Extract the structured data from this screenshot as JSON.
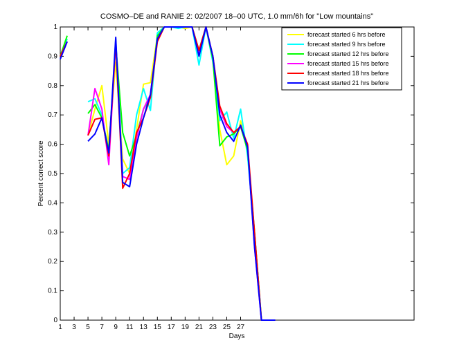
{
  "chart_data": {
    "type": "line",
    "title": "COSMO–DE and RANIE 2: 02/2007 18–00 UTC, 1.0 mm/6h for \"Low mountains\"",
    "xlabel": "Days",
    "ylabel": "Percent correct score",
    "x": [
      1,
      2,
      3,
      4,
      5,
      6,
      7,
      8,
      9,
      10,
      11,
      12,
      13,
      14,
      15,
      16,
      17,
      18,
      19,
      20,
      21,
      22,
      23,
      24,
      25,
      26,
      27,
      28,
      29,
      30,
      31,
      32
    ],
    "xlim": [
      1,
      52
    ],
    "xticks": [
      1,
      3,
      5,
      7,
      9,
      11,
      13,
      15,
      17,
      19,
      21,
      23,
      25,
      27
    ],
    "ylim": [
      0,
      1
    ],
    "yticks": [
      0,
      0.1,
      0.2,
      0.3,
      0.4,
      0.5,
      0.6,
      0.7,
      0.8,
      0.9,
      1
    ],
    "grid": false,
    "legend": "top-right",
    "series": [
      {
        "name": "forecast started 6 hrs before",
        "color": "#ffff00",
        "values": [
          0.9,
          0.96,
          null,
          null,
          0.63,
          0.72,
          0.8,
          0.6,
          0.88,
          0.55,
          0.5,
          0.65,
          0.805,
          0.81,
          0.97,
          1,
          1,
          1,
          0.995,
          1,
          0.9,
          1,
          0.9,
          0.65,
          0.53,
          0.56,
          0.68,
          0.58,
          0.3,
          0,
          0,
          0
        ]
      },
      {
        "name": "forecast started 9 hrs before",
        "color": "#00ffff",
        "values": [
          0.9,
          0.96,
          null,
          null,
          0.745,
          0.755,
          0.7,
          0.55,
          0.96,
          0.5,
          0.52,
          0.7,
          0.79,
          0.715,
          0.98,
          1,
          1,
          0.995,
          1,
          1,
          0.87,
          1,
          0.88,
          0.68,
          0.71,
          0.62,
          0.72,
          0.56,
          0.3,
          0,
          0,
          0
        ]
      },
      {
        "name": "forecast started 12 hrs before",
        "color": "#00ff00",
        "values": [
          0.9,
          0.97,
          null,
          null,
          0.705,
          0.735,
          0.69,
          0.58,
          0.94,
          0.64,
          0.56,
          0.63,
          0.72,
          0.76,
          0.97,
          1,
          1,
          1,
          1,
          1,
          0.92,
          1,
          0.89,
          0.595,
          0.625,
          0.635,
          0.66,
          0.58,
          0.3,
          0,
          0,
          0
        ]
      },
      {
        "name": "forecast started 15 hrs before",
        "color": "#ff00ff",
        "values": [
          0.9,
          0.95,
          null,
          null,
          0.63,
          0.79,
          0.72,
          0.53,
          0.95,
          0.49,
          0.48,
          0.62,
          0.72,
          0.77,
          0.96,
          1,
          1,
          1,
          1,
          1,
          0.91,
          1,
          0.9,
          0.72,
          0.66,
          0.64,
          0.66,
          0.6,
          0.25,
          0,
          0,
          0
        ]
      },
      {
        "name": "forecast started 18 hrs before",
        "color": "#ff0000",
        "values": [
          0.9,
          0.95,
          null,
          null,
          0.63,
          0.685,
          0.69,
          0.56,
          0.95,
          0.45,
          0.5,
          0.64,
          0.69,
          0.76,
          0.95,
          1,
          1,
          1,
          1,
          1,
          0.92,
          1,
          0.9,
          0.73,
          0.67,
          0.64,
          0.66,
          0.6,
          0.3,
          0,
          0,
          0
        ]
      },
      {
        "name": "forecast started 21 hrs before",
        "color": "#0000ff",
        "values": [
          0.89,
          0.95,
          null,
          null,
          0.61,
          0.635,
          0.69,
          0.57,
          0.965,
          0.47,
          0.455,
          0.6,
          0.69,
          0.77,
          0.96,
          1,
          1,
          1,
          1,
          1,
          0.9,
          1,
          0.9,
          0.7,
          0.64,
          0.61,
          0.665,
          0.59,
          0.25,
          0,
          0,
          0
        ]
      }
    ]
  }
}
